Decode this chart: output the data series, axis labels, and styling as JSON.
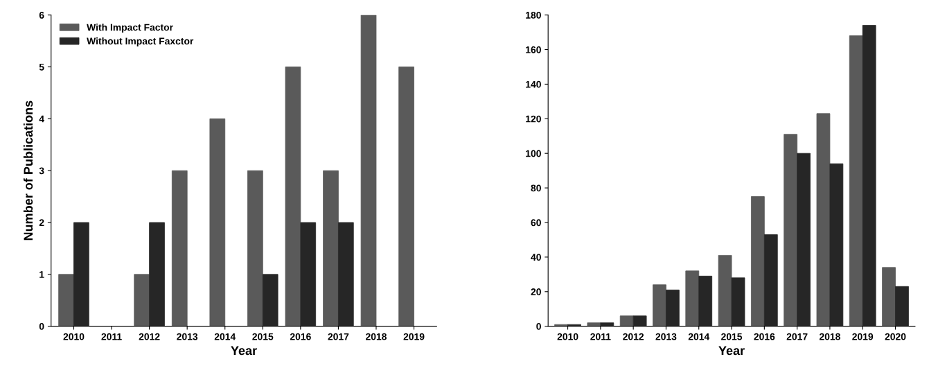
{
  "chart_data": [
    {
      "type": "bar",
      "xlabel": "Year",
      "ylabel": "Number of Publications",
      "categories": [
        "2010",
        "2011",
        "2012",
        "2013",
        "2014",
        "2015",
        "2016",
        "2017",
        "2018",
        "2019"
      ],
      "series": [
        {
          "name": "With Impact Factor",
          "color": "#5a5a5a",
          "values": [
            1,
            0,
            1,
            3,
            4,
            3,
            5,
            3,
            6,
            5
          ]
        },
        {
          "name": "Without Impact Faxctor",
          "color": "#262626",
          "values": [
            2,
            0,
            2,
            0,
            0,
            1,
            2,
            2,
            0,
            0
          ]
        }
      ],
      "ylim": [
        0,
        6
      ],
      "yticks": [
        0,
        1,
        2,
        3,
        4,
        5,
        6
      ],
      "legend": "top left",
      "grid": false
    },
    {
      "type": "bar",
      "xlabel": "Year",
      "categories": [
        "2010",
        "2011",
        "2012",
        "2013",
        "2014",
        "2015",
        "2016",
        "2017",
        "2018",
        "2019",
        "2020"
      ],
      "series": [
        {
          "color": "#5a5a5a",
          "values": [
            1,
            2,
            6,
            24,
            32,
            41,
            75,
            111,
            123,
            168,
            34
          ]
        },
        {
          "color": "#262626",
          "values": [
            1,
            2,
            6,
            21,
            29,
            28,
            53,
            100,
            94,
            174,
            23
          ]
        }
      ],
      "ylim": [
        0,
        180
      ],
      "yticks": [
        0,
        20,
        40,
        60,
        80,
        100,
        120,
        140,
        160,
        180
      ],
      "grid": false
    }
  ]
}
